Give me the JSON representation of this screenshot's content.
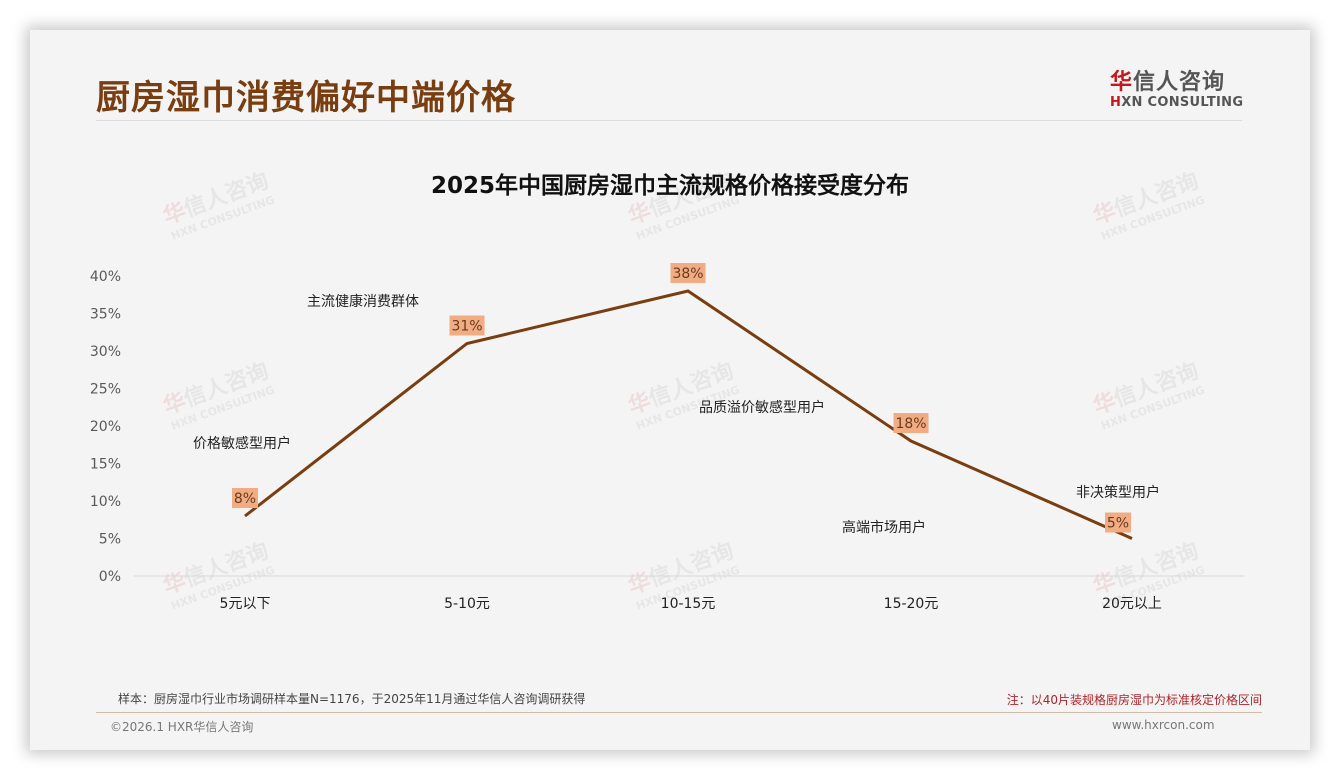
{
  "page": {
    "title": "厨房湿巾消费偏好中端价格",
    "logo": {
      "cn_red": "华",
      "cn_rest": "信人咨询",
      "en_red": "H",
      "en_rest": "XN CONSULTING"
    },
    "watermark": {
      "cn_red": "华",
      "cn_rest": "信人咨询",
      "en": "HXN CONSULTING"
    }
  },
  "chart_data": {
    "type": "line",
    "title": "2025年中国厨房湿巾主流规格价格接受度分布",
    "categories": [
      "5元以下",
      "5-10元",
      "10-15元",
      "15-20元",
      "20元以上"
    ],
    "values": [
      8,
      31,
      38,
      18,
      5
    ],
    "data_labels": [
      "8%",
      "31%",
      "38%",
      "18%",
      "5%"
    ],
    "y_ticks": [
      "0%",
      "5%",
      "10%",
      "15%",
      "20%",
      "25%",
      "30%",
      "35%",
      "40%"
    ],
    "ylim": [
      0,
      40
    ],
    "xlabel": "",
    "ylabel": "",
    "grid": false,
    "legend": "none",
    "line_color": "#7a3d10",
    "label_bg_color": "#f1ac84",
    "annotations": [
      {
        "text": "价格敏感型用户",
        "near": "5元以下"
      },
      {
        "text": "主流健康消费群体",
        "near": "5-10元"
      },
      {
        "text": "品质溢价敏感型用户",
        "near": "10-15元"
      },
      {
        "text": "高端市场用户",
        "near": "15-20元"
      },
      {
        "text": "非决策型用户",
        "near": "20元以上"
      }
    ]
  },
  "footer": {
    "sample_note": "样本：厨房湿巾行业市场调研样本量N=1176，于2025年11月通过华信人咨询调研获得",
    "price_note": "注：以40片装规格厨房湿巾为标准核定价格区间",
    "copyright": "©2026.1 HXR华信人咨询",
    "website": "www.hxrcon.com"
  }
}
